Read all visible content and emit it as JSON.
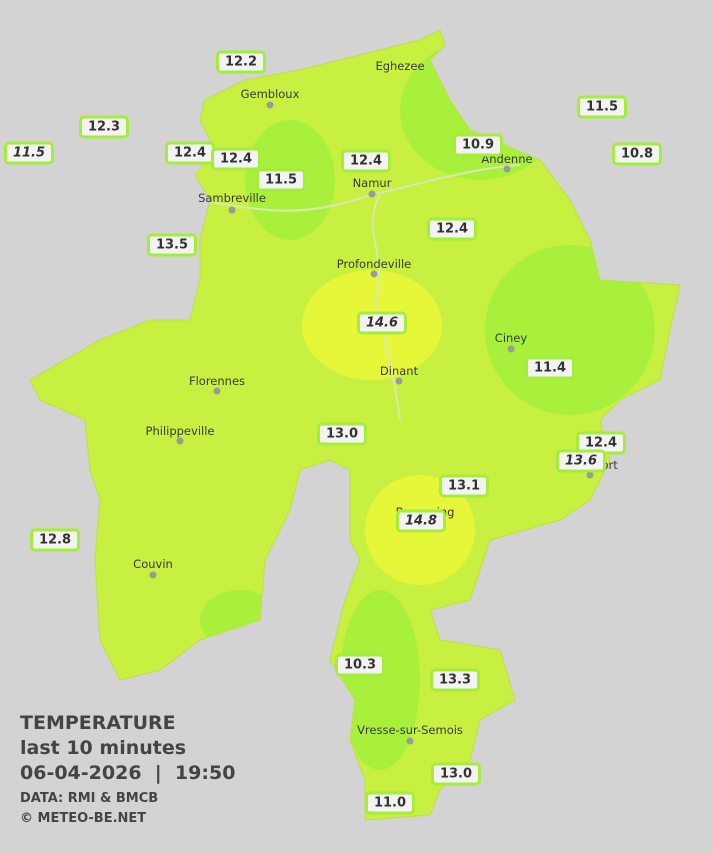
{
  "legend": {
    "title": "TEMPERATURE",
    "subtitle": "last 10 minutes",
    "datetime": "06-04-2026  |  19:50",
    "source": "DATA: RMI & BMCB",
    "credit": "© METEO-BE.NET"
  },
  "cities": [
    "Eghezee",
    "Gembloux",
    "Andenne",
    "Namur",
    "Sambreville",
    "Profondeville",
    "Ciney",
    "Florennes",
    "Dinant",
    "Philippeville",
    "Rochefort",
    "Beauraing",
    "Couvin",
    "Vresse-sur-Semois"
  ],
  "stations": [
    "12.2",
    "12.3",
    "11.5",
    "12.4",
    "12.4",
    "11.5",
    "12.4",
    "10.9",
    "11.5",
    "10.8",
    "12.4",
    "13.5",
    "14.6",
    "11.4",
    "13.0",
    "12.4",
    "13.6",
    "13.1",
    "14.8",
    "12.8",
    "10.3",
    "13.3",
    "13.0",
    "11.0"
  ]
}
